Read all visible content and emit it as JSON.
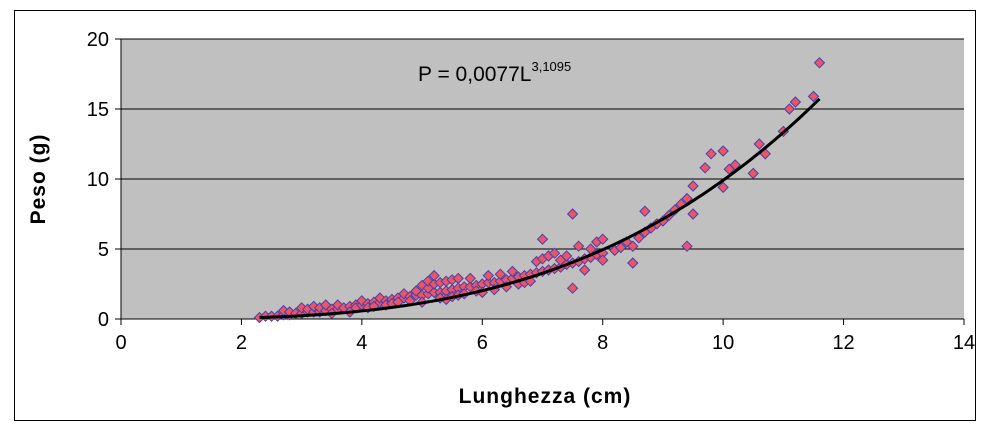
{
  "chart_data": {
    "type": "scatter",
    "title": "",
    "xlabel": "Lunghezza (cm)",
    "ylabel": "Peso (g)",
    "xlim": [
      0,
      14
    ],
    "ylim": [
      0,
      20
    ],
    "x_ticks": [
      "0",
      "2",
      "4",
      "6",
      "8",
      "10",
      "12",
      "14"
    ],
    "y_ticks": [
      "0",
      "5",
      "10",
      "15",
      "20"
    ],
    "grid": "horizontal",
    "legend": "none",
    "annotation": {
      "text": "P = 0,0077L",
      "superscript": "3,1095"
    },
    "colors": {
      "plot_background": "#c0c0c0",
      "marker_fill": "#e8566e",
      "marker_edge": "#4b3fa0",
      "trendline": "#000000"
    },
    "trendline": {
      "type": "power",
      "a": 0.0077,
      "b": 3.1095,
      "x_range": [
        2.3,
        11.6
      ]
    },
    "series": [
      {
        "x": [
          2.3,
          2.4,
          2.5,
          2.6,
          2.7,
          2.7,
          2.8,
          2.8,
          2.9,
          3.0,
          3.0,
          3.1,
          3.1,
          3.2,
          3.2,
          3.3,
          3.3,
          3.4,
          3.4,
          3.5,
          3.5,
          3.6,
          3.6,
          3.7,
          3.8,
          3.8,
          3.9,
          3.9,
          4.0,
          4.0,
          4.1,
          4.1,
          4.2,
          4.2,
          4.3,
          4.3,
          4.4,
          4.4,
          4.5,
          4.5,
          4.6,
          4.6,
          4.7,
          4.7,
          4.8,
          4.8,
          4.9,
          4.9,
          5.0,
          5.0,
          5.0,
          5.1,
          5.1,
          5.1,
          5.2,
          5.2,
          5.2,
          5.3,
          5.3,
          5.3,
          5.4,
          5.4,
          5.4,
          5.5,
          5.5,
          5.5,
          5.6,
          5.6,
          5.6,
          5.7,
          5.7,
          5.8,
          5.8,
          5.9,
          5.9,
          6.0,
          6.0,
          6.1,
          6.1,
          6.2,
          6.2,
          6.3,
          6.3,
          6.4,
          6.4,
          6.5,
          6.5,
          6.6,
          6.6,
          6.7,
          6.7,
          6.8,
          6.8,
          6.9,
          6.9,
          7.0,
          7.0,
          7.0,
          7.1,
          7.1,
          7.2,
          7.2,
          7.3,
          7.3,
          7.4,
          7.4,
          7.5,
          7.5,
          7.5,
          7.6,
          7.6,
          7.7,
          7.7,
          7.8,
          7.8,
          7.9,
          7.9,
          8.0,
          8.0,
          8.0,
          8.2,
          8.3,
          8.4,
          8.5,
          8.5,
          8.6,
          8.7,
          8.7,
          8.8,
          8.9,
          9.0,
          9.1,
          9.2,
          9.3,
          9.4,
          9.4,
          9.5,
          9.5,
          9.7,
          9.8,
          10.0,
          10.0,
          10.1,
          10.2,
          10.5,
          10.6,
          10.7,
          11.0,
          11.1,
          11.2,
          11.5,
          11.6
        ],
        "y": [
          0.1,
          0.2,
          0.2,
          0.2,
          0.3,
          0.6,
          0.3,
          0.5,
          0.4,
          0.4,
          0.8,
          0.5,
          0.7,
          0.5,
          0.9,
          0.5,
          0.8,
          0.6,
          1.0,
          0.7,
          0.4,
          0.7,
          1.0,
          0.8,
          0.9,
          0.5,
          1.0,
          0.8,
          1.0,
          1.3,
          1.1,
          0.8,
          1.2,
          0.9,
          1.2,
          1.5,
          1.3,
          1.0,
          1.4,
          1.1,
          1.5,
          1.2,
          1.5,
          1.8,
          1.6,
          1.3,
          1.7,
          2.0,
          1.7,
          2.4,
          1.2,
          1.8,
          2.2,
          2.7,
          1.9,
          2.5,
          3.1,
          1.9,
          1.5,
          2.6,
          2.0,
          1.4,
          2.7,
          2.1,
          1.6,
          2.8,
          2.2,
          1.7,
          2.9,
          2.3,
          1.8,
          2.3,
          2.9,
          2.4,
          2.0,
          2.5,
          1.9,
          2.6,
          3.1,
          2.6,
          2.1,
          2.7,
          3.2,
          2.8,
          2.3,
          2.9,
          3.4,
          3.0,
          2.5,
          3.1,
          2.6,
          3.2,
          2.7,
          3.3,
          4.1,
          3.4,
          5.7,
          4.3,
          3.5,
          4.5,
          3.6,
          4.7,
          3.7,
          4.2,
          3.9,
          4.5,
          4.0,
          7.5,
          2.2,
          4.1,
          5.2,
          4.3,
          3.5,
          4.4,
          5.0,
          4.6,
          5.5,
          4.7,
          5.7,
          4.2,
          4.9,
          5.1,
          5.5,
          5.2,
          4.0,
          5.8,
          6.2,
          7.7,
          6.5,
          6.8,
          7.0,
          7.4,
          7.8,
          8.2,
          8.6,
          5.2,
          7.5,
          9.5,
          10.8,
          11.8,
          9.4,
          12.0,
          10.7,
          11.0,
          10.4,
          12.5,
          11.8,
          13.4,
          15.0,
          15.5,
          15.9,
          18.3
        ]
      }
    ]
  }
}
